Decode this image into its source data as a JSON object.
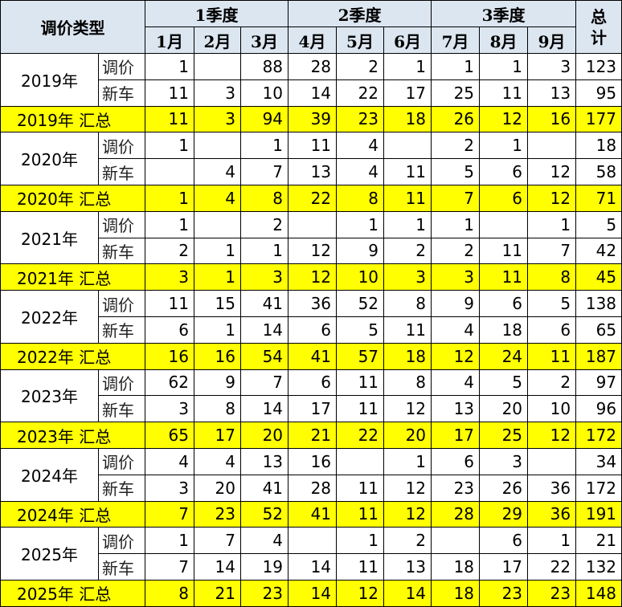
{
  "table": {
    "corner": "调价类型",
    "quarters": [
      "1季度",
      "2季度",
      "3季度"
    ],
    "total": "总计",
    "months": [
      "1月",
      "2月",
      "3月",
      "4月",
      "5月",
      "6月",
      "7月",
      "8月",
      "9月"
    ],
    "years": [
      {
        "year": "2019年",
        "rows": [
          {
            "type": "调价",
            "values": [
              1,
              null,
              88,
              28,
              2,
              1,
              1,
              1,
              3,
              123
            ]
          },
          {
            "type": "新车",
            "values": [
              11,
              3,
              10,
              14,
              22,
              17,
              25,
              11,
              13,
              95
            ]
          }
        ],
        "summary": {
          "label": "2019年 汇总",
          "values": [
            11,
            3,
            94,
            39,
            23,
            18,
            26,
            12,
            16,
            177
          ]
        }
      },
      {
        "year": "2020年",
        "rows": [
          {
            "type": "调价",
            "values": [
              1,
              null,
              1,
              11,
              4,
              null,
              2,
              1,
              null,
              18
            ]
          },
          {
            "type": "新车",
            "values": [
              null,
              4,
              7,
              13,
              4,
              11,
              5,
              6,
              12,
              58
            ]
          }
        ],
        "summary": {
          "label": "2020年 汇总",
          "values": [
            1,
            4,
            8,
            22,
            8,
            11,
            7,
            6,
            12,
            71
          ]
        }
      },
      {
        "year": "2021年",
        "rows": [
          {
            "type": "调价",
            "values": [
              1,
              null,
              2,
              null,
              1,
              1,
              1,
              null,
              1,
              5
            ]
          },
          {
            "type": "新车",
            "values": [
              2,
              1,
              1,
              12,
              9,
              2,
              2,
              11,
              7,
              42
            ]
          }
        ],
        "summary": {
          "label": "2021年 汇总",
          "values": [
            3,
            1,
            3,
            12,
            10,
            3,
            3,
            11,
            8,
            45
          ]
        }
      },
      {
        "year": "2022年",
        "rows": [
          {
            "type": "调价",
            "values": [
              11,
              15,
              41,
              36,
              52,
              8,
              9,
              6,
              5,
              138
            ]
          },
          {
            "type": "新车",
            "values": [
              6,
              1,
              14,
              6,
              5,
              11,
              4,
              18,
              6,
              65
            ]
          }
        ],
        "summary": {
          "label": "2022年 汇总",
          "values": [
            16,
            16,
            54,
            41,
            57,
            18,
            12,
            24,
            11,
            187
          ]
        }
      },
      {
        "year": "2023年",
        "rows": [
          {
            "type": "调价",
            "values": [
              62,
              9,
              7,
              6,
              11,
              8,
              4,
              5,
              2,
              97
            ]
          },
          {
            "type": "新车",
            "values": [
              3,
              8,
              14,
              17,
              11,
              12,
              13,
              20,
              10,
              96
            ]
          }
        ],
        "summary": {
          "label": "2023年 汇总",
          "values": [
            65,
            17,
            20,
            21,
            22,
            20,
            17,
            25,
            12,
            172
          ]
        }
      },
      {
        "year": "2024年",
        "rows": [
          {
            "type": "调价",
            "values": [
              4,
              4,
              13,
              16,
              null,
              1,
              6,
              3,
              null,
              34
            ]
          },
          {
            "type": "新车",
            "values": [
              3,
              20,
              41,
              28,
              11,
              12,
              23,
              26,
              36,
              172
            ]
          }
        ],
        "summary": {
          "label": "2024年 汇总",
          "values": [
            7,
            23,
            52,
            41,
            11,
            12,
            28,
            29,
            36,
            191
          ]
        }
      },
      {
        "year": "2025年",
        "rows": [
          {
            "type": "调价",
            "values": [
              1,
              7,
              4,
              null,
              1,
              2,
              null,
              6,
              1,
              21
            ]
          },
          {
            "type": "新车",
            "values": [
              7,
              14,
              19,
              14,
              11,
              13,
              18,
              17,
              22,
              132
            ]
          }
        ],
        "summary": {
          "label": "2025年 汇总",
          "values": [
            8,
            21,
            23,
            14,
            12,
            14,
            18,
            23,
            23,
            148
          ]
        }
      }
    ]
  }
}
